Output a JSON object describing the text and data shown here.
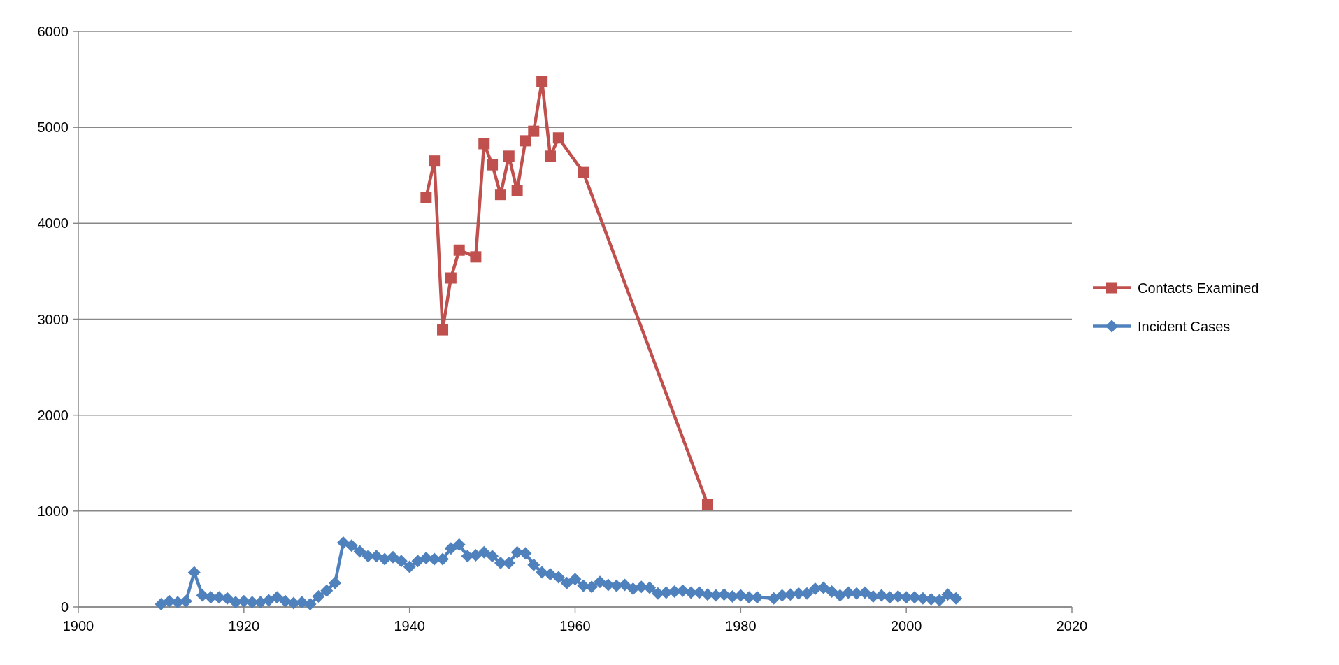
{
  "chart_data": {
    "type": "line",
    "xlim": [
      1900,
      2020
    ],
    "xticks": [
      1900,
      1920,
      1940,
      1960,
      1980,
      2000,
      2020
    ],
    "ylim": [
      0,
      6000
    ],
    "yticks": [
      0,
      1000,
      2000,
      3000,
      4000,
      5000,
      6000
    ],
    "grid": "y",
    "legend": "right",
    "line_style": "solid",
    "series": [
      {
        "name": "Contacts Examined",
        "color": "#c0504d",
        "marker": "square",
        "x": [
          1942,
          1943,
          1944,
          1945,
          1946,
          1948,
          1949,
          1950,
          1951,
          1952,
          1953,
          1954,
          1955,
          1956,
          1957,
          1958,
          1961,
          1976
        ],
        "values": [
          4270,
          4650,
          2890,
          3430,
          3720,
          3650,
          4830,
          4610,
          4300,
          4700,
          4340,
          4860,
          4960,
          5480,
          4700,
          4890,
          4530,
          1070
        ]
      },
      {
        "name": "Incident Cases",
        "color": "#4f81bd",
        "marker": "diamond",
        "x": [
          1910,
          1911,
          1912,
          1913,
          1914,
          1915,
          1916,
          1917,
          1918,
          1919,
          1920,
          1921,
          1922,
          1923,
          1924,
          1925,
          1926,
          1927,
          1928,
          1929,
          1930,
          1931,
          1932,
          1933,
          1934,
          1935,
          1936,
          1937,
          1938,
          1939,
          1940,
          1941,
          1942,
          1943,
          1944,
          1945,
          1946,
          1947,
          1948,
          1949,
          1950,
          1951,
          1952,
          1953,
          1954,
          1955,
          1956,
          1957,
          1958,
          1959,
          1960,
          1961,
          1962,
          1963,
          1964,
          1965,
          1966,
          1967,
          1968,
          1969,
          1970,
          1971,
          1972,
          1973,
          1974,
          1975,
          1976,
          1977,
          1978,
          1979,
          1980,
          1981,
          1982,
          1984,
          1985,
          1986,
          1987,
          1988,
          1989,
          1990,
          1991,
          1992,
          1993,
          1994,
          1995,
          1996,
          1997,
          1998,
          1999,
          2000,
          2001,
          2002,
          2003,
          2004,
          2005,
          2006
        ],
        "values": [
          30,
          60,
          50,
          60,
          360,
          120,
          100,
          100,
          90,
          50,
          60,
          50,
          50,
          70,
          100,
          60,
          40,
          50,
          30,
          110,
          170,
          250,
          670,
          640,
          580,
          530,
          530,
          500,
          520,
          480,
          420,
          480,
          510,
          500,
          500,
          610,
          650,
          530,
          540,
          570,
          530,
          460,
          460,
          570,
          560,
          440,
          360,
          340,
          310,
          250,
          290,
          220,
          210,
          260,
          230,
          220,
          230,
          190,
          210,
          200,
          140,
          150,
          160,
          170,
          150,
          150,
          130,
          120,
          130,
          110,
          120,
          100,
          100,
          90,
          120,
          130,
          140,
          140,
          190,
          200,
          160,
          120,
          150,
          140,
          150,
          110,
          120,
          100,
          110,
          100,
          100,
          90,
          80,
          70,
          130,
          90
        ]
      }
    ]
  }
}
